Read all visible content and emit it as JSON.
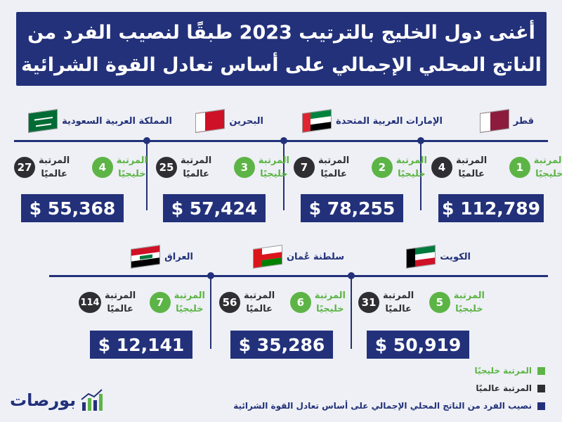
{
  "title": {
    "line1": "أغنى دول الخليج بالترتيب 2023 طبقًا لنصيب الفرد من",
    "line2": "الناتج المحلي الإجمالي على أساس تعادل القوة الشرائية"
  },
  "rank_gulf_label": {
    "line1": "المرتبة",
    "line2": "خليجيًا"
  },
  "rank_world_label": {
    "line1": "المرتبة",
    "line2": "عالميًا"
  },
  "countries": [
    {
      "name": "قطر",
      "gulf_rank": "1",
      "world_rank": "4",
      "value": "$ 112,789",
      "flag": "qatar"
    },
    {
      "name": "الإمارات العربية المتحدة",
      "gulf_rank": "2",
      "world_rank": "7",
      "value": "$ 78,255",
      "flag": "uae"
    },
    {
      "name": "البحرين",
      "gulf_rank": "3",
      "world_rank": "25",
      "value": "$ 57,424",
      "flag": "bahrain"
    },
    {
      "name": "المملكة العربية السعودية",
      "gulf_rank": "4",
      "world_rank": "27",
      "value": "$ 55,368",
      "flag": "saudi"
    },
    {
      "name": "الكويت",
      "gulf_rank": "5",
      "world_rank": "31",
      "value": "$ 50,919",
      "flag": "kuwait"
    },
    {
      "name": "سلطنة عُمان",
      "gulf_rank": "6",
      "world_rank": "56",
      "value": "$ 35,286",
      "flag": "oman"
    },
    {
      "name": "العراق",
      "gulf_rank": "7",
      "world_rank": "114",
      "value": "$ 12,141",
      "flag": "iraq"
    }
  ],
  "legend": {
    "gulf": "المرتبة خليجيًا",
    "world": "المرتبة عالميًا",
    "gdp": "نصيب الفرد من الناتج المحلي الإجمالي على أساس تعادل القوة الشرائية"
  },
  "logo": {
    "text": "بورصات"
  },
  "colors": {
    "navy": "#23317a",
    "green": "#5db446",
    "dark": "#2f2f33",
    "background": "#eef0f5"
  }
}
